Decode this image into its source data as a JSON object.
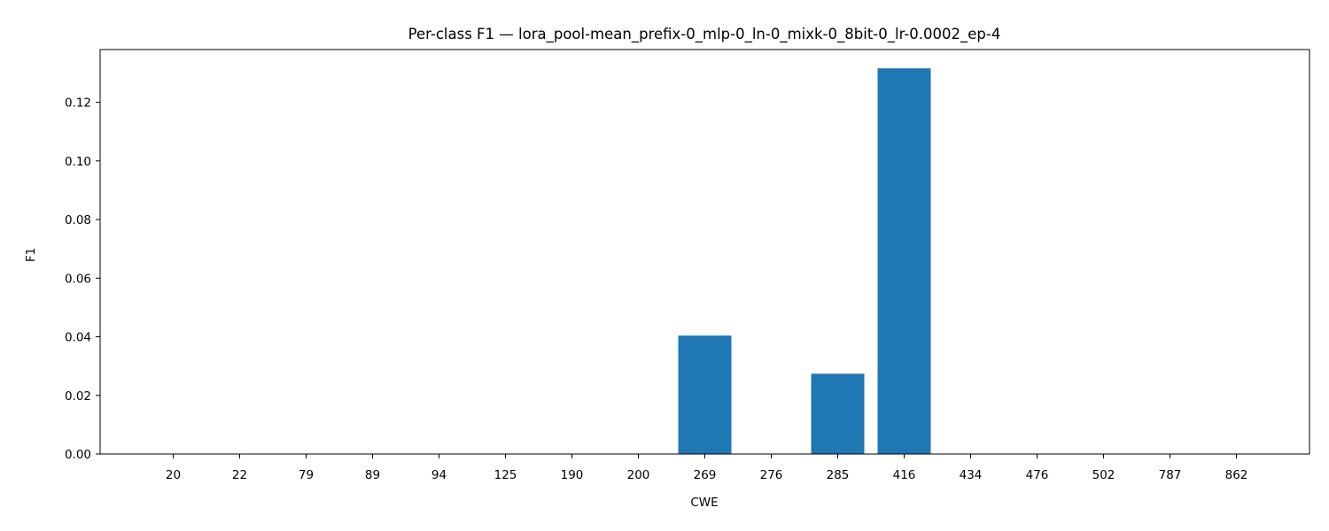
{
  "chart_data": {
    "type": "bar",
    "title": "Per-class F1 — lora_pool-mean_prefix-0_mlp-0_ln-0_mixk-0_8bit-0_lr-0.0002_ep-4",
    "xlabel": "CWE",
    "ylabel": "F1",
    "categories": [
      "20",
      "22",
      "79",
      "89",
      "94",
      "125",
      "190",
      "200",
      "269",
      "276",
      "285",
      "416",
      "434",
      "476",
      "502",
      "787",
      "862"
    ],
    "values": [
      0,
      0,
      0,
      0,
      0,
      0,
      0,
      0,
      0.0404,
      0,
      0.0274,
      0.1316,
      0,
      0,
      0,
      0,
      0
    ],
    "ylim": [
      0,
      0.138
    ],
    "yticks": [
      0.0,
      0.02,
      0.04,
      0.06,
      0.08,
      0.1,
      0.12
    ],
    "ytick_labels": [
      "0.00",
      "0.02",
      "0.04",
      "0.06",
      "0.08",
      "0.10",
      "0.12"
    ],
    "bar_color": "#1f77b4",
    "grid": false,
    "legend": "none"
  }
}
